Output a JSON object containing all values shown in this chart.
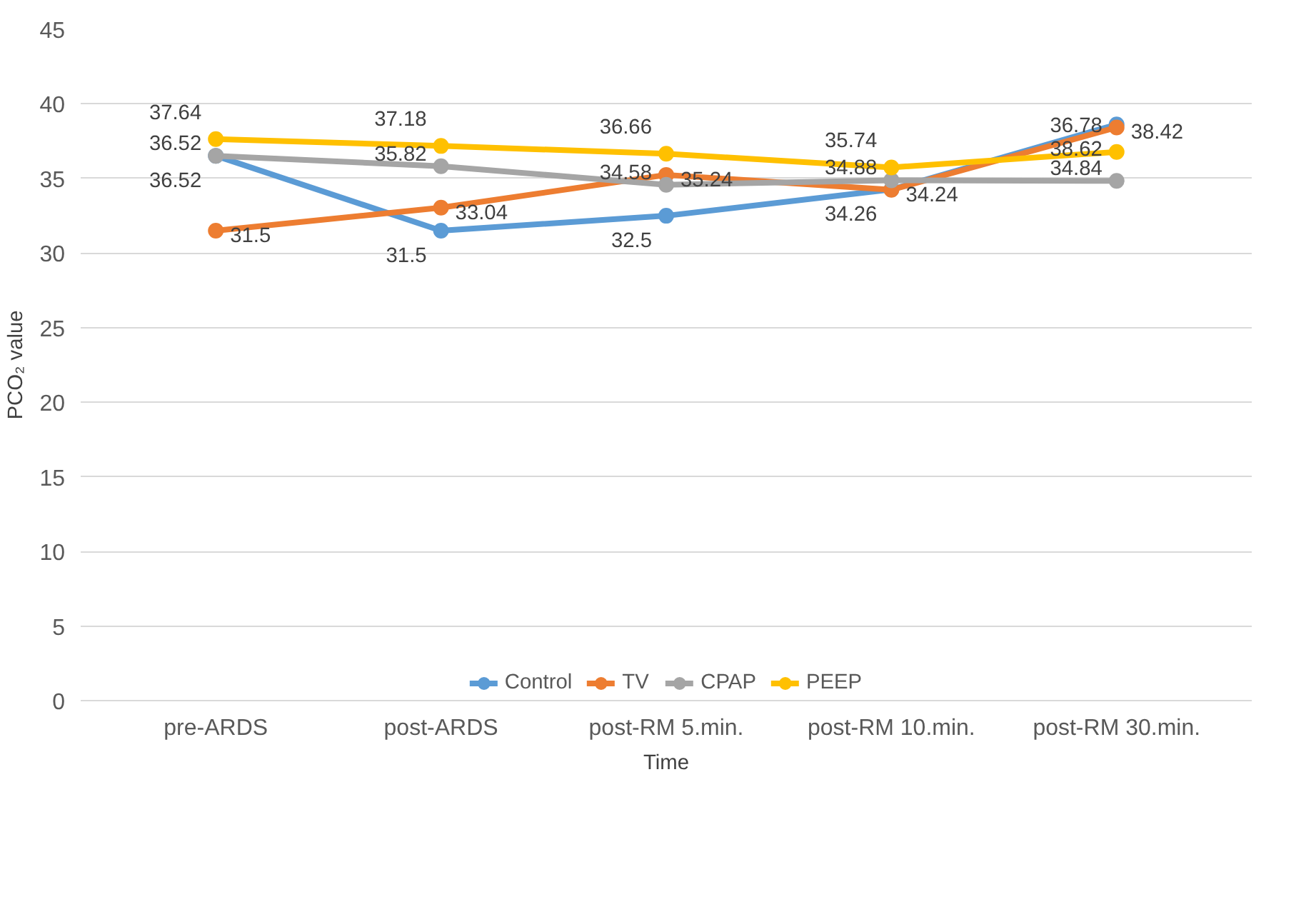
{
  "chart_data": {
    "type": "line",
    "xlabel": "Time",
    "ylabel": "PCO₂ value",
    "categories": [
      "pre-ARDS",
      "post-ARDS",
      "post-RM 5.min.",
      "post-RM 10.min.",
      "post-RM 30.min."
    ],
    "series": [
      {
        "name": "Control",
        "color": "#5b9bd5",
        "values": [
          36.52,
          31.5,
          32.5,
          34.26,
          38.62
        ]
      },
      {
        "name": "TV",
        "color": "#ed7d31",
        "values": [
          31.5,
          33.04,
          35.24,
          34.24,
          38.42
        ]
      },
      {
        "name": "CPAP",
        "color": "#a5a5a5",
        "values": [
          36.52,
          35.82,
          34.58,
          34.88,
          34.84
        ]
      },
      {
        "name": "PEEP",
        "color": "#ffc000",
        "values": [
          37.64,
          37.18,
          36.66,
          35.74,
          36.78
        ]
      }
    ],
    "ylim": [
      0,
      45
    ],
    "yticks": [
      0,
      5,
      10,
      15,
      20,
      25,
      30,
      35,
      40,
      45
    ],
    "grid": "y",
    "legend": "bottom",
    "marker": "circle",
    "line_style": "solid",
    "data_labels": true
  }
}
